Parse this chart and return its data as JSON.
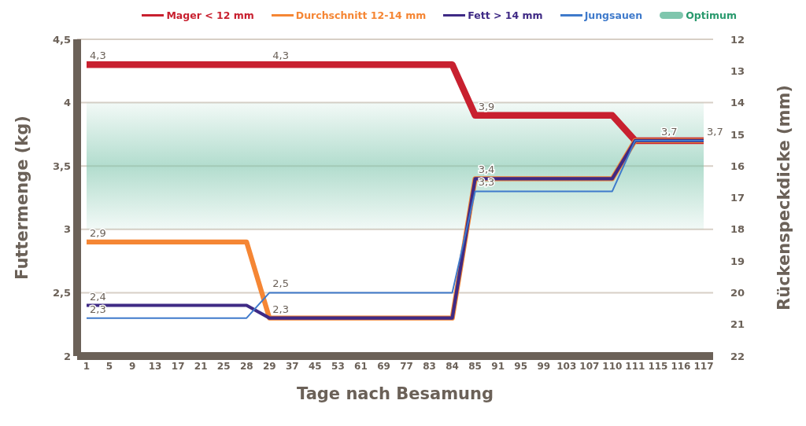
{
  "chart_data": {
    "type": "line",
    "xlabel": "Tage nach Besamung",
    "ylabel": "Futtermenge (kg)",
    "y2label": "Rückenspeckdicke (mm)",
    "categories": [
      "1",
      "5",
      "9",
      "13",
      "17",
      "21",
      "25",
      "28",
      "29",
      "37",
      "45",
      "53",
      "61",
      "69",
      "77",
      "83",
      "84",
      "85",
      "91",
      "95",
      "99",
      "103",
      "107",
      "110",
      "111",
      "115",
      "116",
      "117"
    ],
    "series": [
      {
        "name": "Mager < 12 mm",
        "color": "#c8202f",
        "values": [
          4.3,
          4.3,
          4.3,
          4.3,
          4.3,
          4.3,
          4.3,
          4.3,
          4.3,
          4.3,
          4.3,
          4.3,
          4.3,
          4.3,
          4.3,
          4.3,
          4.3,
          3.9,
          3.9,
          3.9,
          3.9,
          3.9,
          3.9,
          3.9,
          3.7,
          3.7,
          3.7,
          3.7
        ],
        "value_labels": [
          "4,3",
          null,
          null,
          null,
          null,
          null,
          null,
          null,
          "4,3",
          null,
          null,
          null,
          null,
          null,
          null,
          null,
          null,
          "3,9",
          null,
          null,
          null,
          null,
          null,
          null,
          null,
          null,
          null,
          null
        ]
      },
      {
        "name": "Durchschnitt 12-14 mm",
        "color": "#f58634",
        "values": [
          2.9,
          2.9,
          2.9,
          2.9,
          2.9,
          2.9,
          2.9,
          2.9,
          2.3,
          2.3,
          2.3,
          2.3,
          2.3,
          2.3,
          2.3,
          2.3,
          2.3,
          3.4,
          3.4,
          3.4,
          3.4,
          3.4,
          3.4,
          3.4,
          3.7,
          3.7,
          3.7,
          3.7
        ],
        "value_labels": [
          "2,9",
          null,
          null,
          null,
          null,
          null,
          null,
          null,
          null,
          null,
          null,
          null,
          null,
          null,
          null,
          null,
          null,
          null,
          null,
          null,
          null,
          null,
          null,
          null,
          null,
          null,
          null,
          null
        ]
      },
      {
        "name": "Fett > 14 mm",
        "color": "#3f2a85",
        "values": [
          2.4,
          2.4,
          2.4,
          2.4,
          2.4,
          2.4,
          2.4,
          2.4,
          2.3,
          2.3,
          2.3,
          2.3,
          2.3,
          2.3,
          2.3,
          2.3,
          2.3,
          3.4,
          3.4,
          3.4,
          3.4,
          3.4,
          3.4,
          3.4,
          3.7,
          3.7,
          3.7,
          3.7
        ],
        "value_labels": [
          "2,4",
          null,
          null,
          null,
          null,
          null,
          null,
          null,
          "2,3",
          null,
          null,
          null,
          null,
          null,
          null,
          null,
          null,
          "3,4",
          null,
          null,
          null,
          null,
          null,
          null,
          null,
          null,
          null,
          null
        ]
      },
      {
        "name": "Jungsauen",
        "color": "#3f7acb",
        "values": [
          2.3,
          2.3,
          2.3,
          2.3,
          2.3,
          2.3,
          2.3,
          2.3,
          2.5,
          2.5,
          2.5,
          2.5,
          2.5,
          2.5,
          2.5,
          2.5,
          2.5,
          3.3,
          3.3,
          3.3,
          3.3,
          3.3,
          3.3,
          3.3,
          3.7,
          3.7,
          3.7,
          3.7
        ],
        "value_labels": [
          "2,3",
          null,
          null,
          null,
          null,
          null,
          null,
          null,
          "2,5",
          null,
          null,
          null,
          null,
          null,
          null,
          null,
          null,
          "3,3",
          null,
          null,
          null,
          null,
          null,
          null,
          null,
          "3,7",
          null,
          "3,7"
        ]
      }
    ],
    "ylim": [
      2,
      4.5
    ],
    "yticks": [
      2,
      {
        "value": 2.5,
        "label": "2,5"
      },
      3,
      {
        "value": 3.5,
        "label": "3,5"
      },
      4,
      {
        "value": 4.5,
        "label": "4,5"
      }
    ],
    "y2lim": [
      22,
      12
    ],
    "y2ticks": [
      12,
      13,
      14,
      15,
      16,
      17,
      18,
      19,
      20,
      21,
      22
    ],
    "bands": [
      {
        "axis": "y",
        "from": 3,
        "to": 4,
        "label": "Optimum",
        "color": "#7fc6ad"
      }
    ],
    "grid": "y",
    "legend": "top right",
    "marker": "none",
    "line_style": "solid"
  }
}
